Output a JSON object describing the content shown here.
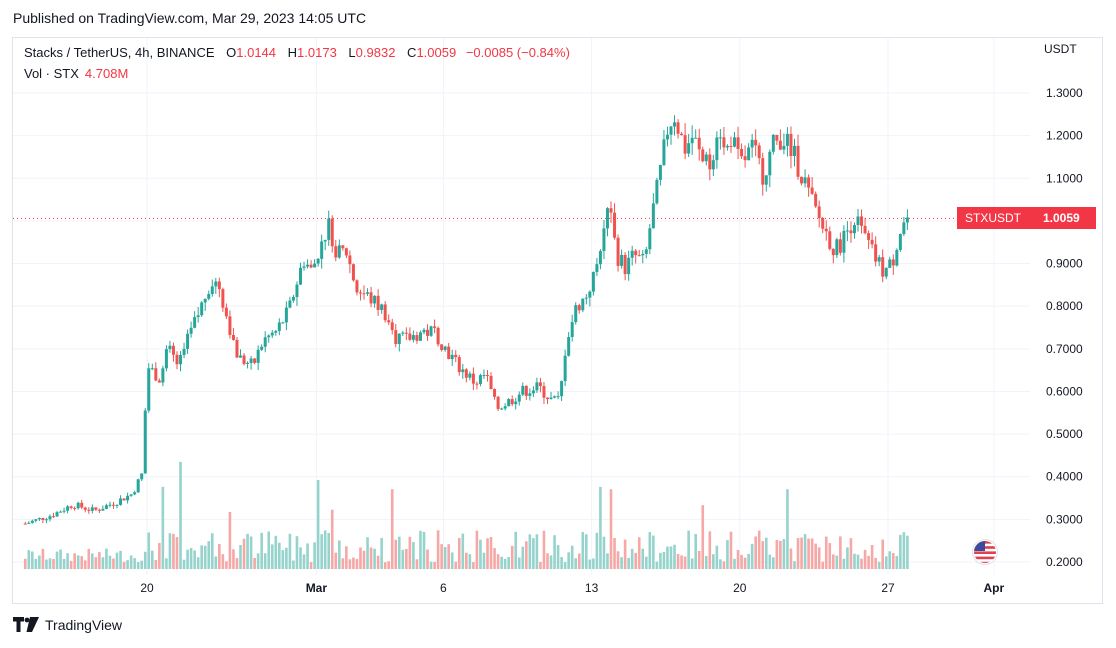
{
  "header": {
    "published": "Published on TradingView.com, Mar 29, 2023 14:05 UTC"
  },
  "legend": {
    "symbol": "Stacks / TetherUS, 4h, BINANCE",
    "o_label": "O",
    "o": "1.0144",
    "h_label": "H",
    "h": "1.0173",
    "l_label": "L",
    "l": "0.9832",
    "c_label": "C",
    "c": "1.0059",
    "change": "−0.0085 (−0.84%)",
    "vol_label": "Vol · STX",
    "vol": "4.708M"
  },
  "price_badge": {
    "symbol": "STXUSDT",
    "value": "1.0059"
  },
  "footer": {
    "brand": "TradingView"
  },
  "colors": {
    "up": "#26a69a",
    "down": "#ef5350",
    "up_vol": "#95d3cc",
    "down_vol": "#f5a8a5",
    "grid": "#f0f3fa",
    "last": "#f23645"
  },
  "chart_data": {
    "type": "candlestick",
    "title": "Stacks / TetherUS, 4h, BINANCE",
    "ylabel": "USDT",
    "ylim": [
      0.18,
      1.35
    ],
    "y_ticks": [
      "1.3000",
      "1.2000",
      "1.1000",
      "1.0000",
      "0.9000",
      "0.8000",
      "0.7000",
      "0.6000",
      "0.5000",
      "0.4000",
      "0.3000",
      "0.2000"
    ],
    "x_ticks": [
      {
        "label": "20",
        "day": 20
      },
      {
        "label": "Mar",
        "day": 28
      },
      {
        "label": "6",
        "day": 34
      },
      {
        "label": "13",
        "day": 41
      },
      {
        "label": "20",
        "day": 48
      },
      {
        "label": "27",
        "day": 55
      },
      {
        "label": "Apr",
        "day": 60
      }
    ],
    "x_domain_days": [
      14.2,
      60
    ],
    "last_price": 1.0059,
    "close_path": [
      [
        14.25,
        0.29
      ],
      [
        15.5,
        0.31
      ],
      [
        16.5,
        0.335
      ],
      [
        17.5,
        0.32
      ],
      [
        18.5,
        0.34
      ],
      [
        19.3,
        0.36
      ],
      [
        19.8,
        0.41
      ],
      [
        20.0,
        0.66
      ],
      [
        20.6,
        0.63
      ],
      [
        21.0,
        0.7
      ],
      [
        21.5,
        0.66
      ],
      [
        22.0,
        0.73
      ],
      [
        22.5,
        0.79
      ],
      [
        23.0,
        0.86
      ],
      [
        23.4,
        0.85
      ],
      [
        23.8,
        0.77
      ],
      [
        24.3,
        0.68
      ],
      [
        25.0,
        0.66
      ],
      [
        25.5,
        0.72
      ],
      [
        26.1,
        0.74
      ],
      [
        26.7,
        0.79
      ],
      [
        27.1,
        0.86
      ],
      [
        27.4,
        0.91
      ],
      [
        27.8,
        0.88
      ],
      [
        28.2,
        0.95
      ],
      [
        28.6,
        0.99
      ],
      [
        29.0,
        0.92
      ],
      [
        29.4,
        0.93
      ],
      [
        29.9,
        0.84
      ],
      [
        30.5,
        0.82
      ],
      [
        31.2,
        0.79
      ],
      [
        31.7,
        0.73
      ],
      [
        32.2,
        0.72
      ],
      [
        33.0,
        0.74
      ],
      [
        33.6,
        0.74
      ],
      [
        34.1,
        0.7
      ],
      [
        34.7,
        0.66
      ],
      [
        35.5,
        0.62
      ],
      [
        36.0,
        0.64
      ],
      [
        36.5,
        0.56
      ],
      [
        37.2,
        0.58
      ],
      [
        37.7,
        0.6
      ],
      [
        38.5,
        0.61
      ],
      [
        39.1,
        0.58
      ],
      [
        39.5,
        0.58
      ],
      [
        39.8,
        0.72
      ],
      [
        40.3,
        0.8
      ],
      [
        40.7,
        0.82
      ],
      [
        41.2,
        0.88
      ],
      [
        41.5,
        0.97
      ],
      [
        41.8,
        1.03
      ],
      [
        42.2,
        0.92
      ],
      [
        42.6,
        0.89
      ],
      [
        43.0,
        0.92
      ],
      [
        43.5,
        0.9
      ],
      [
        43.8,
        1.0
      ],
      [
        44.2,
        1.1
      ],
      [
        44.6,
        1.22
      ],
      [
        44.9,
        1.25
      ],
      [
        45.4,
        1.17
      ],
      [
        45.8,
        1.2
      ],
      [
        46.2,
        1.14
      ],
      [
        46.6,
        1.13
      ],
      [
        47.0,
        1.24
      ],
      [
        47.3,
        1.15
      ],
      [
        47.6,
        1.2
      ],
      [
        48.0,
        1.13
      ],
      [
        48.6,
        1.17
      ],
      [
        49.1,
        1.11
      ],
      [
        49.6,
        1.18
      ],
      [
        50.0,
        1.2
      ],
      [
        50.5,
        1.16
      ],
      [
        51.0,
        1.1
      ],
      [
        51.5,
        1.03
      ],
      [
        52.0,
        0.98
      ],
      [
        52.5,
        0.93
      ],
      [
        52.9,
        0.96
      ],
      [
        53.4,
        1.01
      ],
      [
        53.8,
        0.97
      ],
      [
        54.3,
        0.92
      ],
      [
        54.8,
        0.88
      ],
      [
        55.2,
        0.9
      ],
      [
        55.5,
        0.97
      ],
      [
        55.8,
        1.0
      ],
      [
        56.0,
        1.0059
      ]
    ],
    "volume_spikes": [
      {
        "day": 20.8,
        "volume": 36
      },
      {
        "day": 21.7,
        "volume": 47
      },
      {
        "day": 28.2,
        "volume": 39
      },
      {
        "day": 31.6,
        "volume": 35
      },
      {
        "day": 41.4,
        "volume": 36
      },
      {
        "day": 41.9,
        "volume": 35
      },
      {
        "day": 50.2,
        "volume": 35
      },
      {
        "day": 46.2,
        "volume": 28
      },
      {
        "day": 24.0,
        "volume": 25
      },
      {
        "day": 28.8,
        "volume": 26
      }
    ],
    "volume_unit": "M"
  }
}
